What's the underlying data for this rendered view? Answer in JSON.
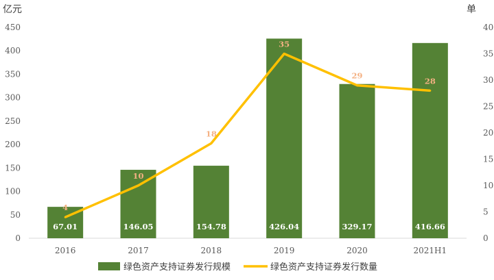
{
  "chart_data": {
    "type": "bar",
    "categories": [
      "2016",
      "2017",
      "2018",
      "2019",
      "2020",
      "2021H1"
    ],
    "series": [
      {
        "name": "绿色资产支持证券发行规模",
        "type": "bar",
        "axis": "left",
        "color": "#548235",
        "values": [
          67.01,
          146.05,
          154.78,
          426.04,
          329.17,
          416.66
        ],
        "labels": [
          "67.01",
          "146.05",
          "154.78",
          "426.04",
          "329.17",
          "416.66"
        ]
      },
      {
        "name": "绿色资产支持证券发行数量",
        "type": "line",
        "axis": "right",
        "color": "#ffc000",
        "values": [
          4,
          10,
          18,
          35,
          29,
          28
        ],
        "labels": [
          "4",
          "10",
          "18",
          "35",
          "29",
          "28"
        ]
      }
    ],
    "y_left": {
      "unit": "亿元",
      "ylim": [
        0,
        450
      ],
      "ticks": [
        "0",
        "50",
        "100",
        "150",
        "200",
        "250",
        "300",
        "350",
        "400",
        "450"
      ]
    },
    "y_right": {
      "unit": "单",
      "ylim": [
        0,
        40
      ],
      "ticks": [
        "0",
        "5",
        "10",
        "15",
        "20",
        "25",
        "30",
        "35",
        "40"
      ]
    },
    "legend_position": "bottom",
    "grid": false
  }
}
